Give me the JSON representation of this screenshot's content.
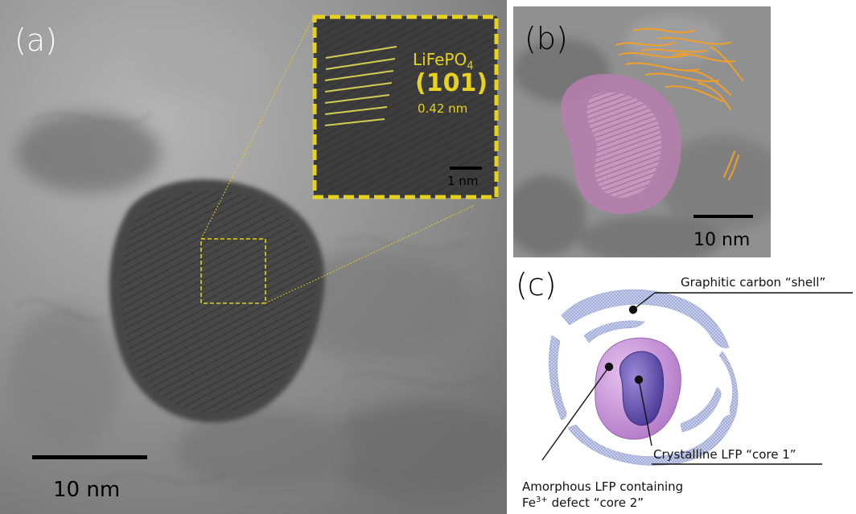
{
  "panel_a": {
    "label": "(a)",
    "scale_bar": "10 nm",
    "inset": {
      "material_main": "LiFePO",
      "material_sub": "4",
      "plane": "(101)",
      "spacing": "0.42 nm",
      "scale_bar": "1 nm"
    },
    "colors": {
      "highlight": "#e6d21e",
      "lattice": "#d4cd55"
    }
  },
  "panel_b": {
    "label": "(b)",
    "scale_bar": "10 nm",
    "colors": {
      "core": "#b77fb0",
      "shell_traces": "#f0a028"
    }
  },
  "panel_c": {
    "label": "(c)",
    "shell_label": "Graphitic carbon “shell”",
    "core1_label": "Crystalline LFP “core 1”",
    "core2_line1": "Amorphous LFP containing",
    "core2_line2_prefix": "Fe",
    "core2_line2_sup": "3+",
    "core2_line2_suffix": " defect “core 2”",
    "colors": {
      "shell": "#aab5dd",
      "core2": "#c38ad6",
      "core1": "#6c58b0"
    }
  }
}
